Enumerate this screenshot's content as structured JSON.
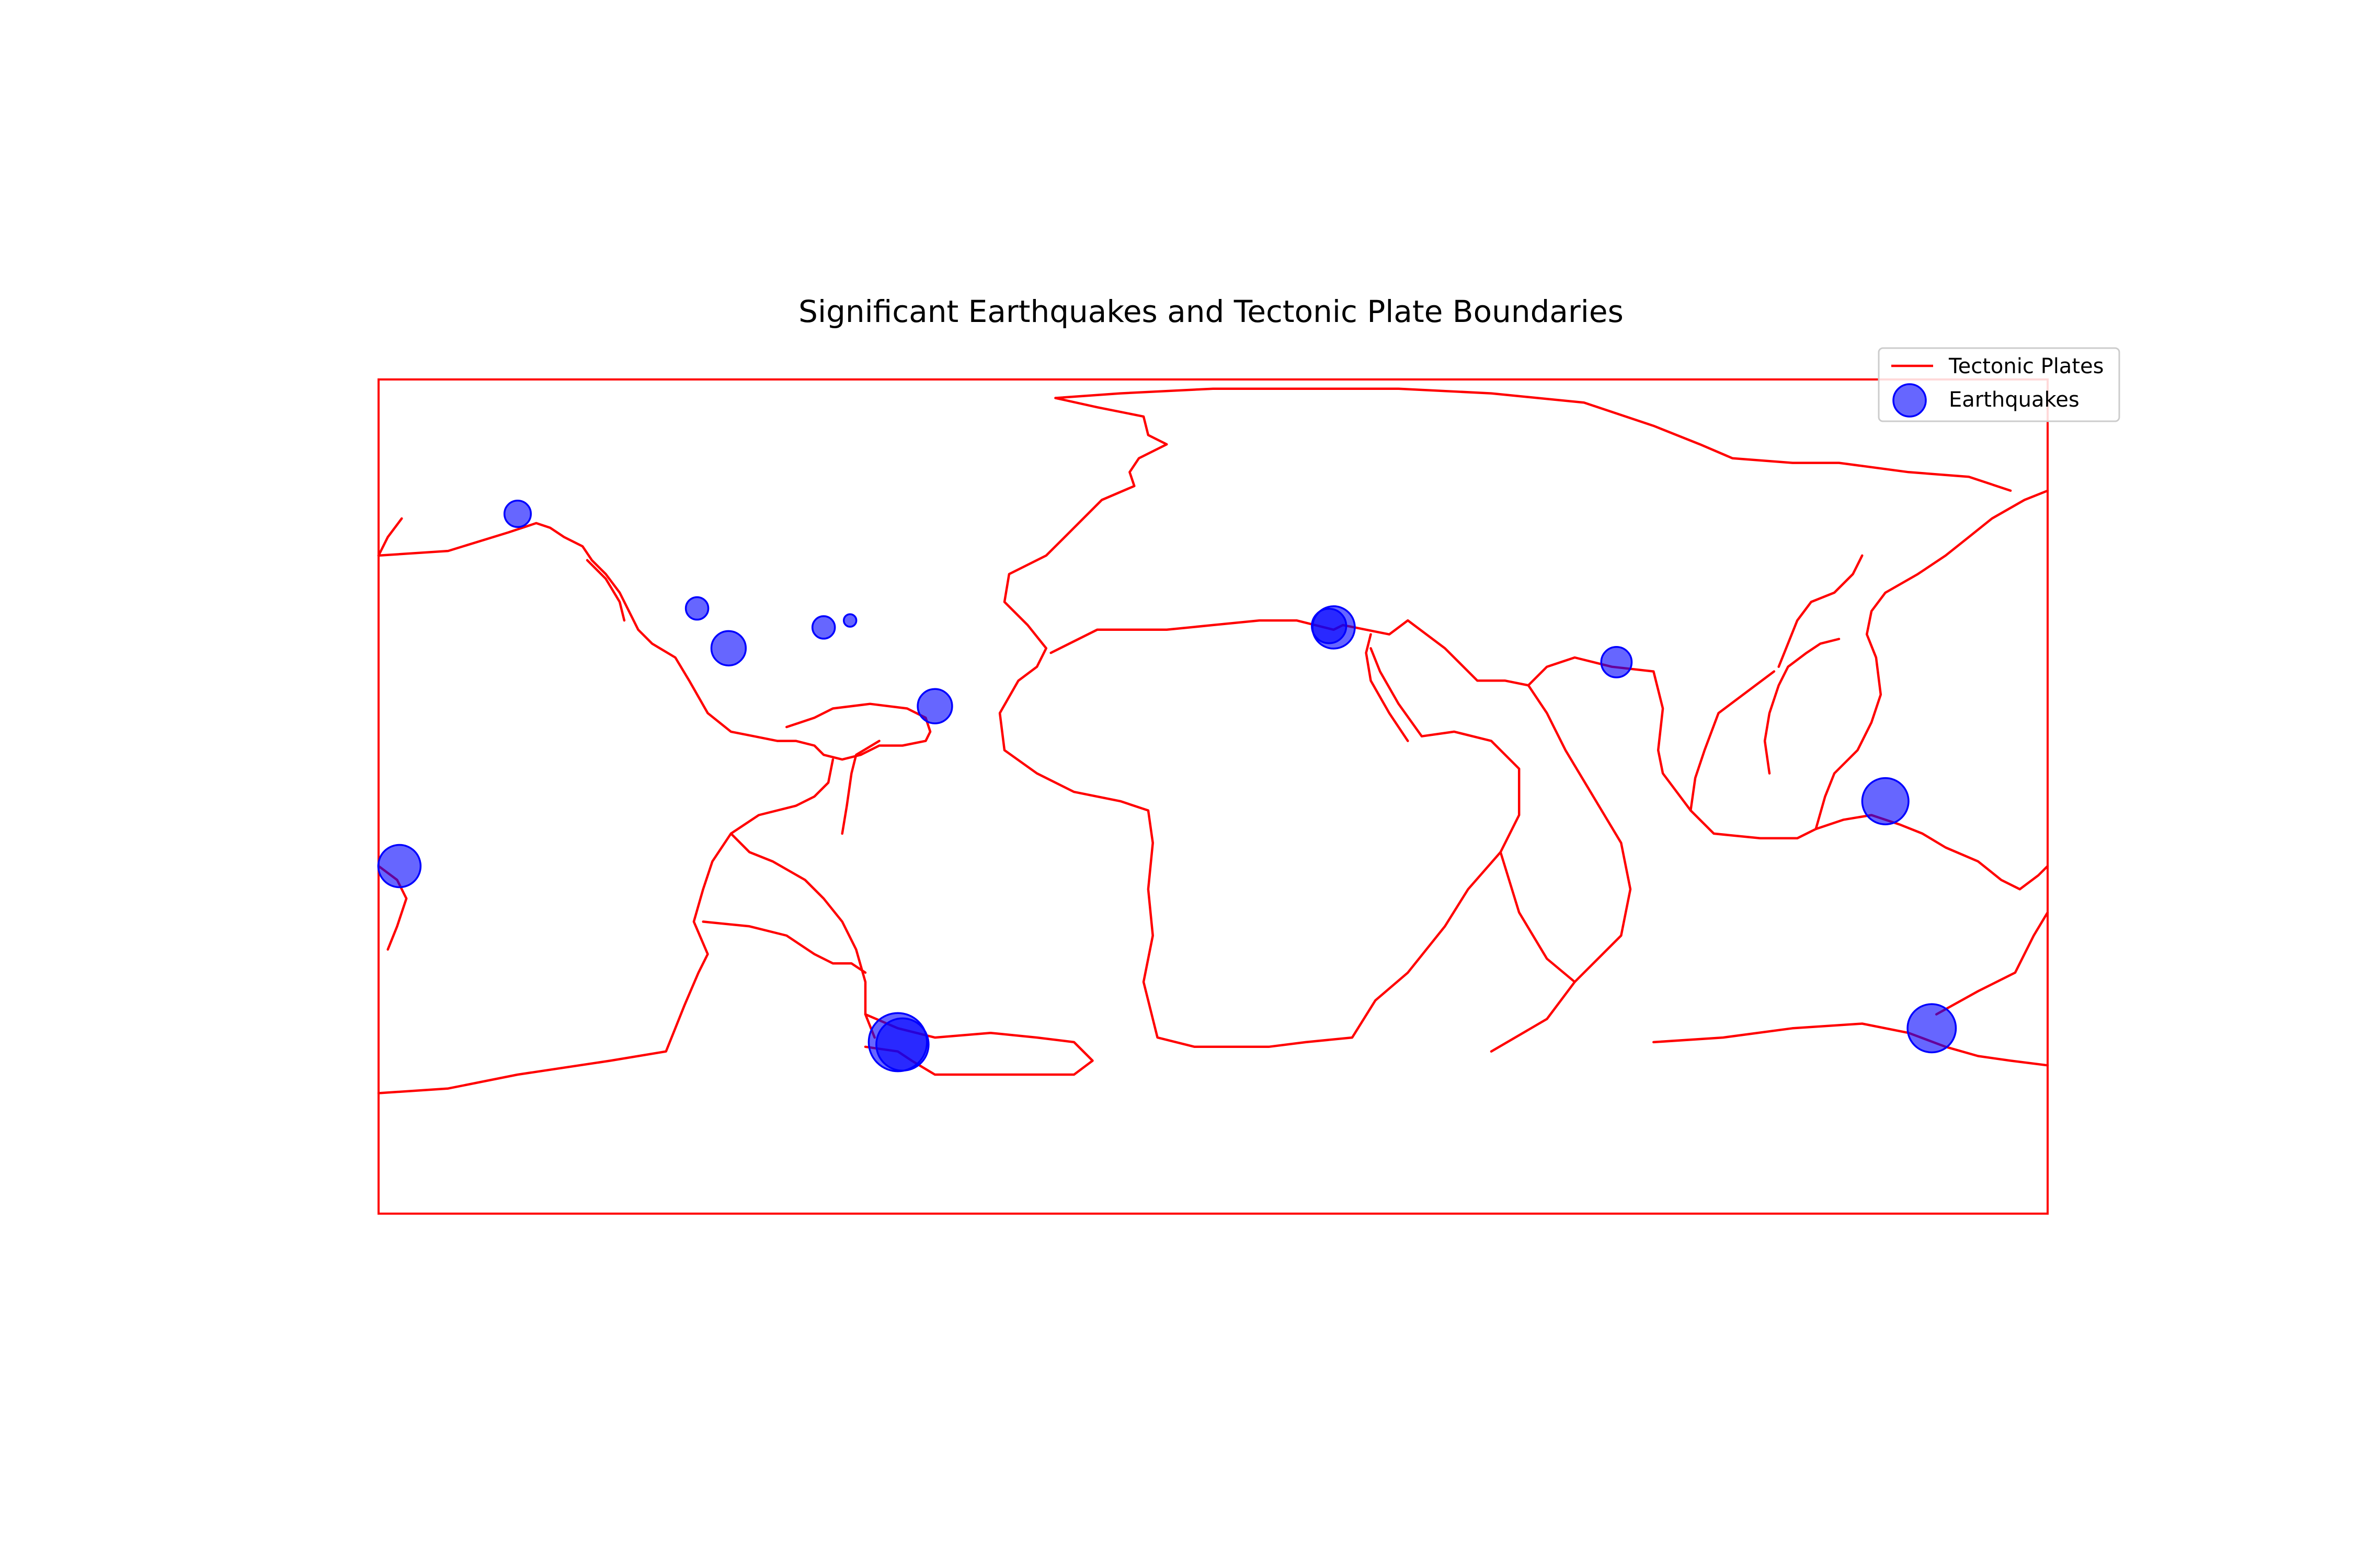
{
  "map": {
    "title": "Significant Earthquakes and Tectonic Plate Boundaries",
    "projection": "equirectangular",
    "lon_range": [
      -180,
      180
    ],
    "lat_range": [
      -90,
      90
    ],
    "frame_color": "#ff0000",
    "plate_color": "#ff0000",
    "quake_color": "#0000ff",
    "quake_opacity": 0.6
  },
  "legend": {
    "placement": "top-right",
    "items": [
      {
        "label": "Tectonic Plates",
        "marker": "line"
      },
      {
        "label": "Earthquakes",
        "marker": "circle"
      }
    ]
  },
  "earthquakes": [
    {
      "lon": -150.0,
      "lat": 61.0,
      "mag": 6.2
    },
    {
      "lon": -111.3,
      "lat": 40.6,
      "mag": 6.0
    },
    {
      "lon": -104.5,
      "lat": 32.0,
      "mag": 6.6
    },
    {
      "lon": -84.0,
      "lat": 36.5,
      "mag": 6.0
    },
    {
      "lon": -78.3,
      "lat": 38.0,
      "mag": 5.5
    },
    {
      "lon": -60.0,
      "lat": 19.5,
      "mag": 6.6
    },
    {
      "lon": -175.5,
      "lat": -15.0,
      "mag": 7.0
    },
    {
      "lon": -68.0,
      "lat": -53.0,
      "mag": 7.8
    },
    {
      "lon": -67.0,
      "lat": -53.5,
      "mag": 7.5
    },
    {
      "lon": 25.0,
      "lat": 36.8,
      "mag": 6.6
    },
    {
      "lon": 26.0,
      "lat": 36.5,
      "mag": 7.0
    },
    {
      "lon": 87.0,
      "lat": 29.0,
      "mag": 6.4
    },
    {
      "lon": 145.0,
      "lat": -1.0,
      "mag": 7.2
    },
    {
      "lon": 155.0,
      "lat": -50.0,
      "mag": 7.3
    }
  ]
}
